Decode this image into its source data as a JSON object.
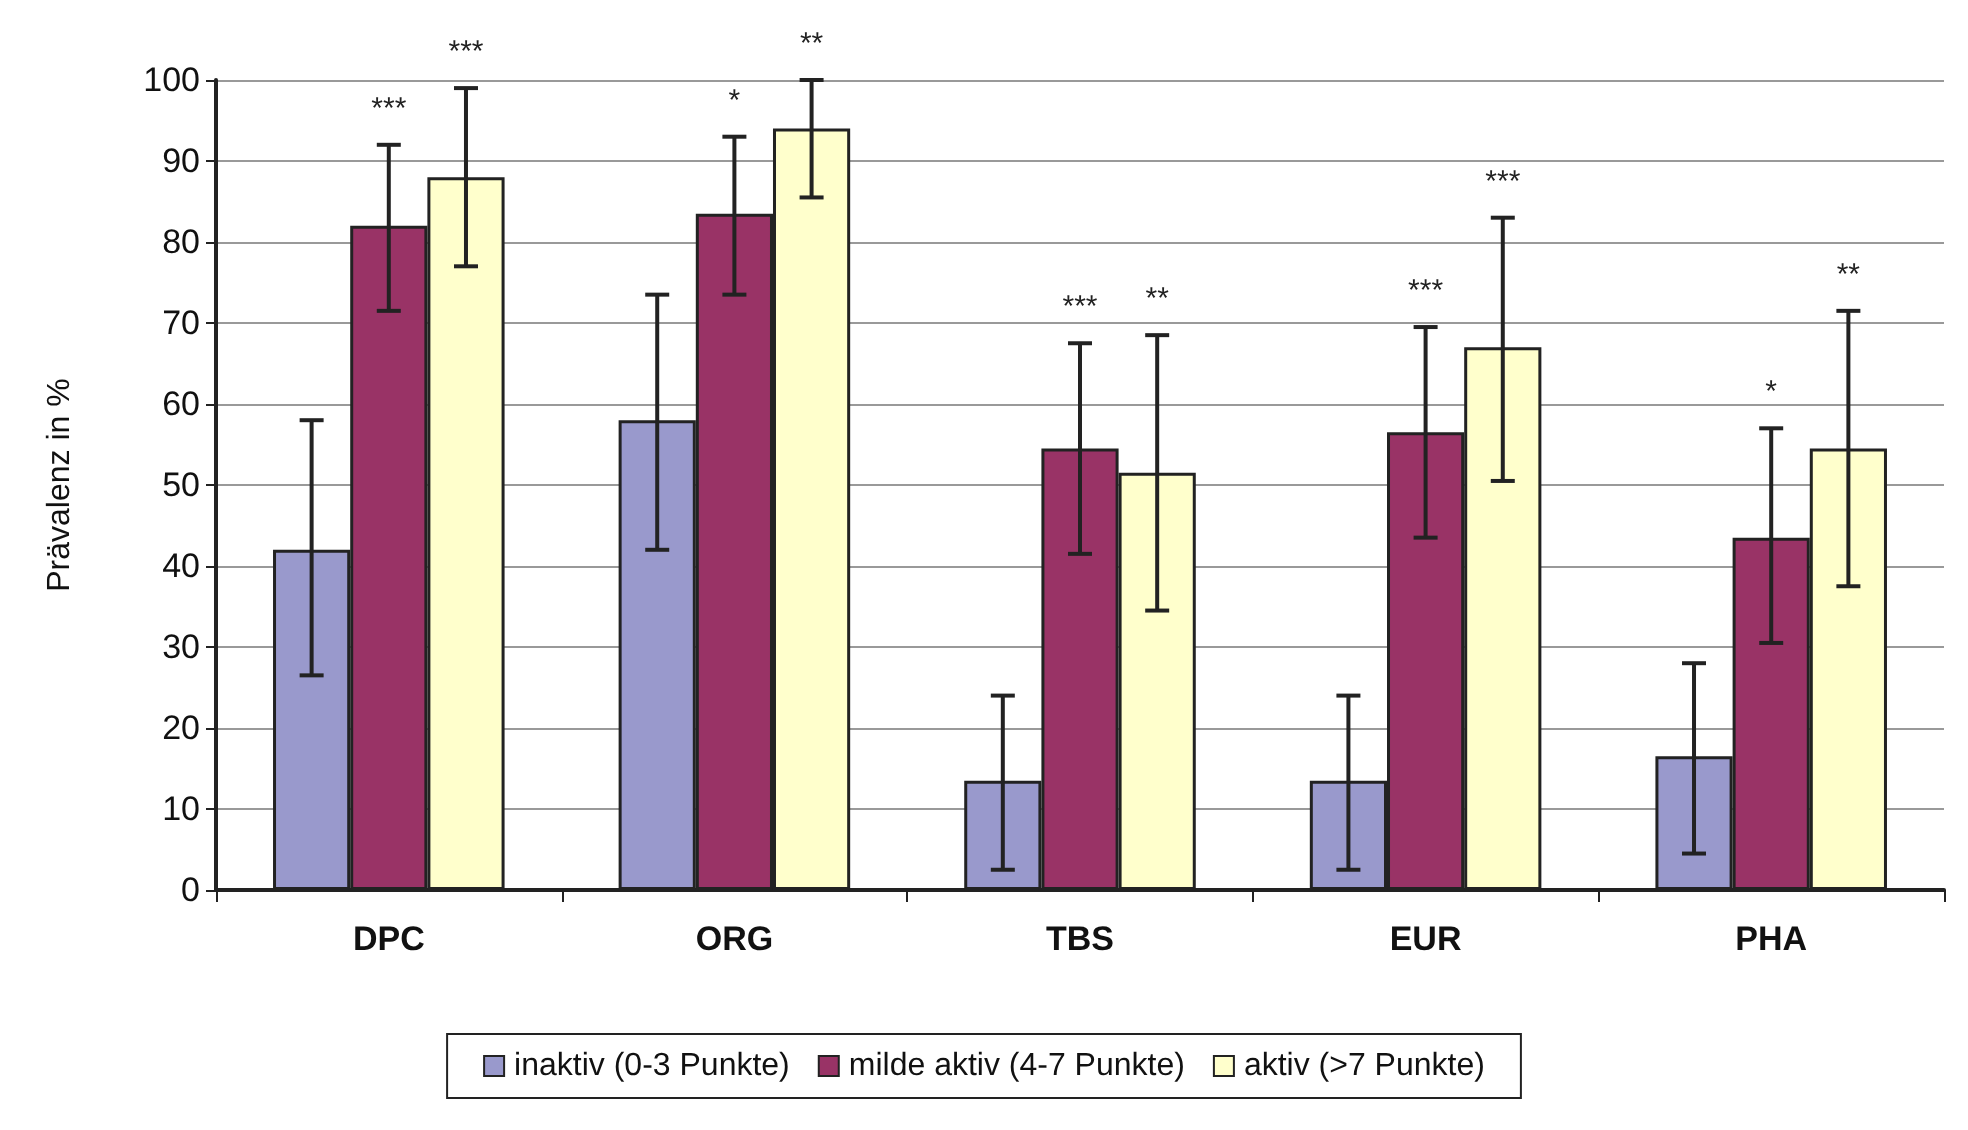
{
  "chart_data": {
    "type": "bar",
    "ylabel": "Prävalenz in %",
    "categories": [
      "DPC",
      "ORG",
      "TBS",
      "EUR",
      "PHA"
    ],
    "ylim": [
      0,
      100
    ],
    "yticks": [
      0,
      10,
      20,
      30,
      40,
      50,
      60,
      70,
      80,
      90,
      100
    ],
    "grid": "y",
    "legend": "bottom",
    "series": [
      {
        "name": "inaktiv (0-3 Punkte)",
        "color": "#9999cc",
        "values": [
          42,
          58,
          13.5,
          13.5,
          16.5
        ],
        "errors": [
          [
            26.5,
            58
          ],
          [
            42,
            73.5
          ],
          [
            2.5,
            24
          ],
          [
            2.5,
            24
          ],
          [
            4.5,
            28
          ]
        ]
      },
      {
        "name": "milde aktiv (4-7 Punkte)",
        "color": "#993366",
        "values": [
          82,
          83.5,
          54.5,
          56.5,
          43.5
        ],
        "errors": [
          [
            71.5,
            92
          ],
          [
            73.5,
            93
          ],
          [
            41.5,
            67.5
          ],
          [
            43.5,
            69.5
          ],
          [
            30.5,
            57
          ]
        ]
      },
      {
        "name": "aktiv (>7 Punkte)",
        "color": "#ffffcc",
        "values": [
          88,
          94,
          51.5,
          67,
          54.5
        ],
        "errors": [
          [
            77,
            99
          ],
          [
            85.5,
            100
          ],
          [
            34.5,
            68.5
          ],
          [
            50.5,
            83
          ],
          [
            37.5,
            71.5
          ]
        ]
      }
    ],
    "annotations": [
      "***",
      "***",
      "*",
      "**",
      "***",
      "**",
      "***",
      "***",
      "*",
      "**"
    ]
  }
}
